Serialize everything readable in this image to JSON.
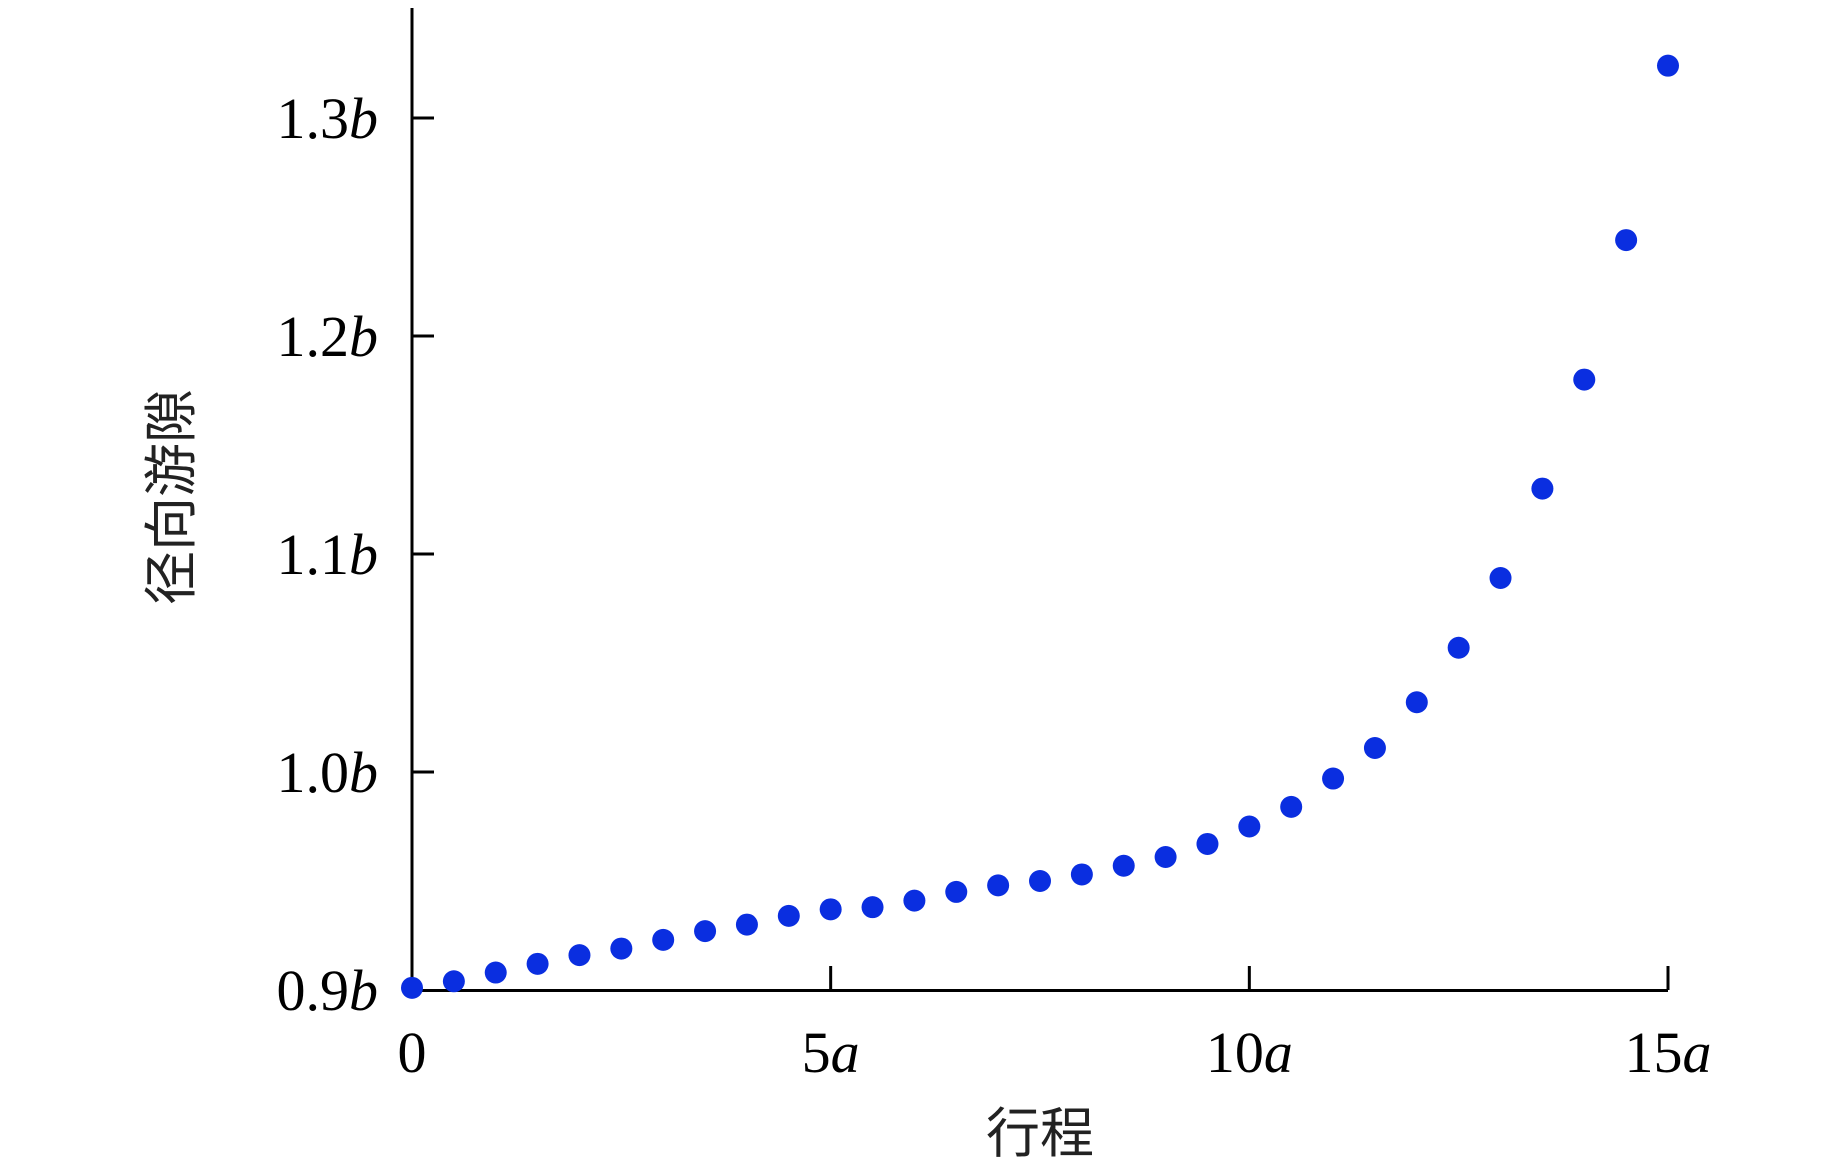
{
  "chart_data": {
    "type": "scatter",
    "xlabel": "行程",
    "ylabel": "径向游隙",
    "xlim": [
      0,
      15
    ],
    "ylim": [
      0.9,
      1.35
    ],
    "x_ticks": [
      {
        "value": 0,
        "num": "0",
        "unit": ""
      },
      {
        "value": 5,
        "num": "5",
        "unit": "a"
      },
      {
        "value": 10,
        "num": "10",
        "unit": "a"
      },
      {
        "value": 15,
        "num": "15",
        "unit": "a"
      }
    ],
    "y_ticks": [
      {
        "value": 0.9,
        "num": "0.9",
        "unit": "b"
      },
      {
        "value": 1.0,
        "num": "1.0",
        "unit": "b"
      },
      {
        "value": 1.1,
        "num": "1.1",
        "unit": "b"
      },
      {
        "value": 1.2,
        "num": "1.2",
        "unit": "b"
      },
      {
        "value": 1.3,
        "num": "1.3",
        "unit": "b"
      }
    ],
    "marker_color": "#0a2ee0",
    "grid": false,
    "series": [
      {
        "x": [
          0,
          0.5,
          1,
          1.5,
          2,
          2.5,
          3,
          3.5,
          4,
          4.5,
          5,
          5.5,
          6,
          6.5,
          7,
          7.5,
          8,
          8.5,
          9,
          9.5,
          10,
          10.5,
          11,
          11.5,
          12,
          12.5,
          13,
          13.5,
          14,
          14.5,
          15
        ],
        "y": [
          0.901,
          0.904,
          0.908,
          0.912,
          0.916,
          0.919,
          0.923,
          0.927,
          0.93,
          0.934,
          0.937,
          0.938,
          0.941,
          0.945,
          0.948,
          0.95,
          0.953,
          0.957,
          0.961,
          0.967,
          0.975,
          0.984,
          0.997,
          1.011,
          1.032,
          1.057,
          1.089,
          1.13,
          1.18,
          1.244,
          1.324
        ]
      }
    ]
  }
}
